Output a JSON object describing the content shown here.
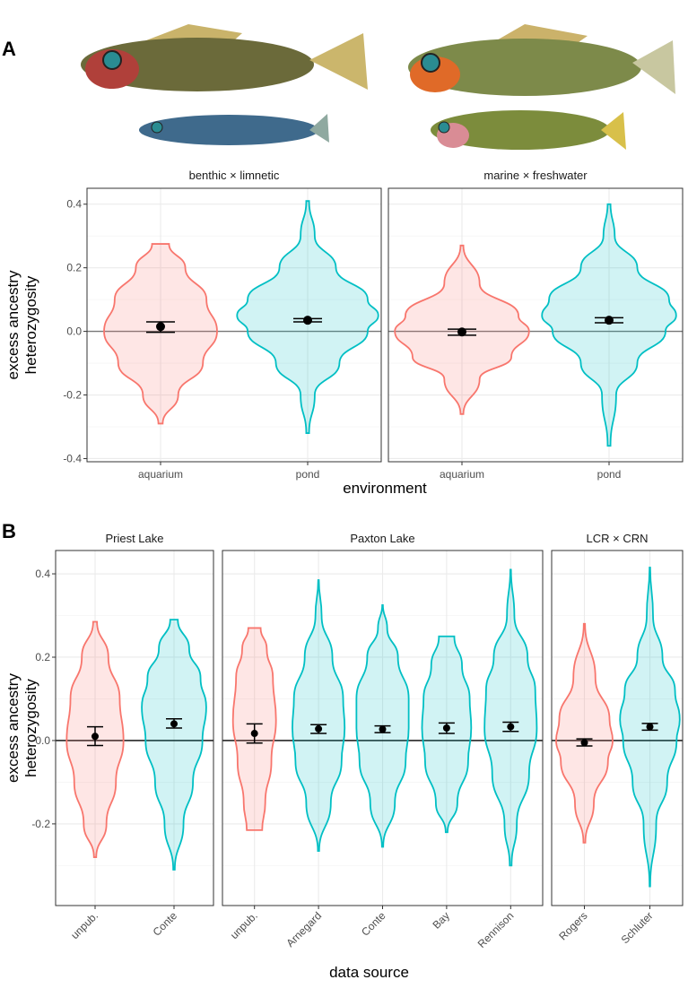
{
  "chart_data": [
    {
      "type": "violin",
      "panel_label": "A",
      "x_label": "environment",
      "y_label": [
        "excess ancestry",
        "heterozygosity"
      ],
      "ylim": [
        -0.41,
        0.45
      ],
      "yticks": [
        -0.4,
        -0.2,
        {
          "value": 0,
          "label": "0.0"
        },
        0.2,
        0.4
      ],
      "minor_yticks": [
        -0.3,
        -0.1,
        0.1,
        0.3
      ],
      "reference_line": 0,
      "reference_color": "#777777",
      "grid": true,
      "rotate_x_labels": false,
      "facets": [
        {
          "title": "benthic × limnetic",
          "groups": [
            {
              "category": "aquarium",
              "color": "#F8766D",
              "mean": 0.015,
              "ci": [
                -0.003,
                0.03
              ],
              "violin_y": [
                -0.29,
                -0.2,
                -0.1,
                0,
                0.1,
                0.2,
                0.275
              ],
              "violin_w": [
                0.03,
                0.25,
                0.6,
                0.8,
                0.65,
                0.35,
                0.12
              ]
            },
            {
              "category": "pond",
              "color": "#00BFC4",
              "mean": 0.035,
              "ci": [
                0.03,
                0.04
              ],
              "violin_y": [
                -0.32,
                -0.2,
                -0.1,
                0,
                0.05,
                0.1,
                0.2,
                0.3,
                0.41
              ],
              "violin_w": [
                0.02,
                0.1,
                0.45,
                0.85,
                1,
                0.85,
                0.4,
                0.1,
                0.02
              ]
            }
          ]
        },
        {
          "title": "marine × freshwater",
          "groups": [
            {
              "category": "aquarium",
              "color": "#F8766D",
              "mean": -0.002,
              "ci": [
                -0.012,
                0.007
              ],
              "violin_y": [
                -0.26,
                -0.15,
                -0.08,
                0,
                0.05,
                0.15,
                0.27
              ],
              "violin_w": [
                0.02,
                0.25,
                0.7,
                0.95,
                0.8,
                0.25,
                0.02
              ]
            },
            {
              "category": "pond",
              "color": "#00BFC4",
              "mean": 0.035,
              "ci": [
                0.027,
                0.043
              ],
              "violin_y": [
                -0.36,
                -0.2,
                -0.1,
                0,
                0.05,
                0.1,
                0.2,
                0.3,
                0.4
              ],
              "violin_w": [
                0.02,
                0.1,
                0.4,
                0.8,
                0.95,
                0.85,
                0.4,
                0.08,
                0.02
              ]
            }
          ]
        }
      ]
    },
    {
      "type": "violin",
      "panel_label": "B",
      "x_label": "data source",
      "y_label": [
        "excess ancestry",
        "heterozygosity"
      ],
      "ylim": [
        -0.396,
        0.456
      ],
      "yticks": [
        -0.2,
        {
          "value": 0,
          "label": "0.0"
        },
        0.2,
        0.4
      ],
      "minor_yticks": [
        -0.3,
        -0.1,
        0.1,
        0.3
      ],
      "reference_line": 0,
      "reference_color": "#000000",
      "grid": true,
      "rotate_x_labels": true,
      "facets": [
        {
          "title": "Priest Lake",
          "groups": [
            {
              "category": "unpub.",
              "color": "#F8766D",
              "mean": 0.01,
              "ci": [
                -0.012,
                0.033
              ],
              "violin_y": [
                -0.28,
                -0.2,
                -0.1,
                0,
                0.1,
                0.2,
                0.285
              ],
              "violin_w": [
                0.03,
                0.3,
                0.55,
                0.75,
                0.65,
                0.35,
                0.05
              ]
            },
            {
              "category": "Conte",
              "color": "#00BFC4",
              "mean": 0.04,
              "ci": [
                0.03,
                0.052
              ],
              "violin_y": [
                -0.31,
                -0.2,
                -0.1,
                0,
                0.08,
                0.15,
                0.22,
                0.29
              ],
              "violin_w": [
                0.02,
                0.25,
                0.5,
                0.75,
                0.85,
                0.7,
                0.4,
                0.1
              ]
            }
          ]
        },
        {
          "title": "Paxton Lake",
          "groups": [
            {
              "category": "unpub.",
              "color": "#F8766D",
              "mean": 0.017,
              "ci": [
                -0.006,
                0.04
              ],
              "violin_y": [
                -0.215,
                -0.15,
                -0.05,
                0.05,
                0.15,
                0.22,
                0.27
              ],
              "violin_w": [
                0.25,
                0.35,
                0.55,
                0.7,
                0.6,
                0.4,
                0.2
              ]
            },
            {
              "category": "Arnegard",
              "color": "#00BFC4",
              "mean": 0.028,
              "ci": [
                0.017,
                0.038
              ],
              "violin_y": [
                -0.265,
                -0.15,
                -0.05,
                0.03,
                0.1,
                0.2,
                0.3,
                0.385
              ],
              "violin_w": [
                0.02,
                0.4,
                0.75,
                0.85,
                0.8,
                0.45,
                0.1,
                0.01
              ]
            },
            {
              "category": "Conte",
              "color": "#00BFC4",
              "mean": 0.027,
              "ci": [
                0.019,
                0.035
              ],
              "violin_y": [
                -0.255,
                -0.15,
                -0.05,
                0.03,
                0.1,
                0.2,
                0.27,
                0.325
              ],
              "violin_w": [
                0.02,
                0.4,
                0.75,
                0.85,
                0.85,
                0.5,
                0.15,
                0.01
              ]
            },
            {
              "category": "Bay",
              "color": "#00BFC4",
              "mean": 0.03,
              "ci": [
                0.017,
                0.042
              ],
              "violin_y": [
                -0.22,
                -0.15,
                -0.05,
                0.03,
                0.1,
                0.18,
                0.25
              ],
              "violin_w": [
                0.03,
                0.35,
                0.7,
                0.8,
                0.75,
                0.5,
                0.25
              ]
            },
            {
              "category": "Rennison",
              "color": "#00BFC4",
              "mean": 0.033,
              "ci": [
                0.022,
                0.044
              ],
              "violin_y": [
                -0.3,
                -0.2,
                -0.08,
                0.03,
                0.12,
                0.2,
                0.3,
                0.41
              ],
              "violin_w": [
                0.03,
                0.2,
                0.6,
                0.85,
                0.8,
                0.55,
                0.12,
                0.01
              ]
            }
          ]
        },
        {
          "title": "LCR × CRN",
          "groups": [
            {
              "category": "Rogers",
              "color": "#F8766D",
              "mean": -0.005,
              "ci": [
                -0.013,
                0.004
              ],
              "violin_y": [
                -0.245,
                -0.15,
                -0.05,
                0,
                0.05,
                0.15,
                0.28
              ],
              "violin_w": [
                0.03,
                0.3,
                0.75,
                0.9,
                0.8,
                0.35,
                0.02
              ]
            },
            {
              "category": "Schluter",
              "color": "#00BFC4",
              "mean": 0.033,
              "ci": [
                0.025,
                0.041
              ],
              "violin_y": [
                -0.35,
                -0.2,
                -0.1,
                0,
                0.05,
                0.12,
                0.2,
                0.3,
                0.415
              ],
              "violin_w": [
                0.01,
                0.2,
                0.55,
                0.85,
                0.95,
                0.8,
                0.4,
                0.1,
                0.01
              ]
            }
          ]
        }
      ]
    }
  ]
}
